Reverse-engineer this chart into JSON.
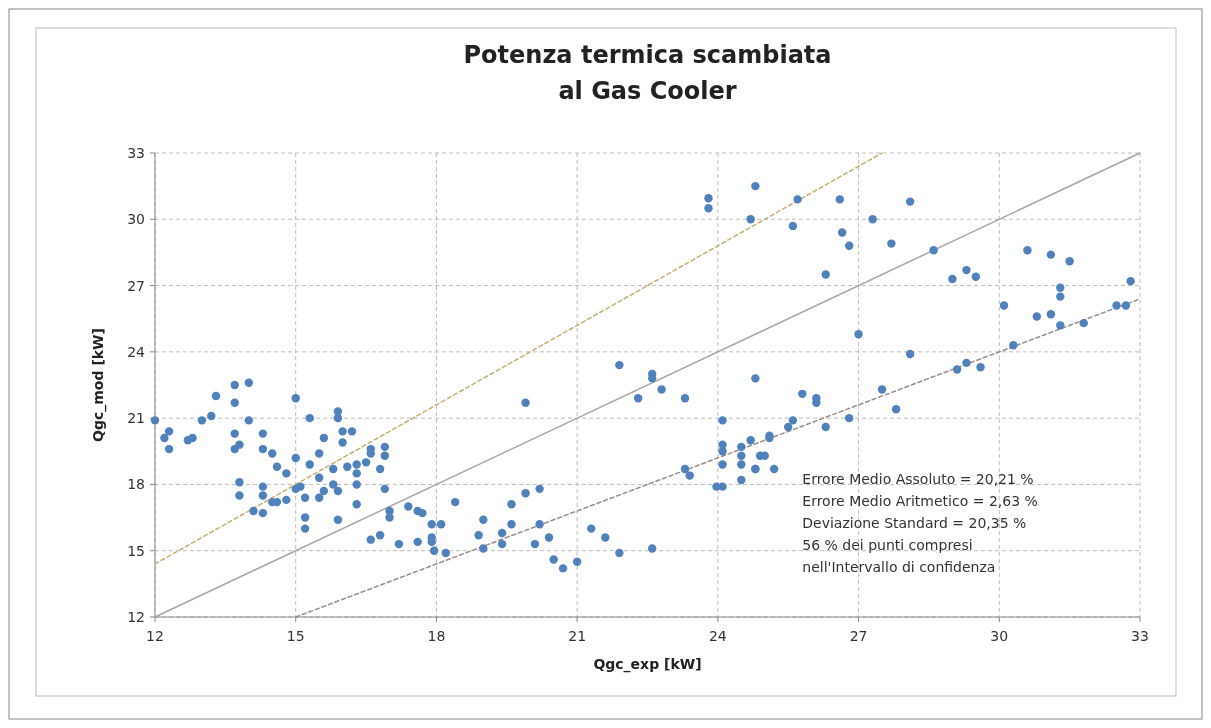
{
  "chart_data": {
    "type": "scatter",
    "title": "Potenza termica scambiata\nal Gas Cooler",
    "xlabel": "Qgc_exp [kW]",
    "ylabel": "Qgc_mod [kW]",
    "xlim": [
      12,
      33
    ],
    "xticks": [
      12,
      15,
      18,
      21,
      24,
      27,
      30,
      33
    ],
    "ylim": [
      12,
      33
    ],
    "yticks": [
      12,
      15,
      18,
      21,
      24,
      27,
      30,
      33
    ],
    "grid": true,
    "marker": "circle",
    "annotations": [
      "Errore Medio Assoluto = 20,21 %",
      "Errore Medio Aritmetico = 2,63 %",
      "Deviazione Standard = 20,35 %",
      "56 % dei punti compresi",
      "nell'Intervallo di confidenza"
    ],
    "series": [
      {
        "type": "line",
        "color": "#a6a6a6",
        "line_style": "solid",
        "marker": "none",
        "x": [
          12,
          33
        ],
        "values": [
          12,
          33
        ]
      },
      {
        "type": "line",
        "color": "#c4b070",
        "line_style": "dashed",
        "marker": "none",
        "x": [
          12,
          27.5
        ],
        "values": [
          14.4,
          33
        ]
      },
      {
        "type": "line",
        "color": "#9a8a8a",
        "line_style": "dashed",
        "marker": "none",
        "x": [
          15,
          33
        ],
        "values": [
          12,
          26.4
        ]
      },
      {
        "color": "#4f81bd",
        "x": [
          12.0,
          12.2,
          12.3,
          12.3,
          12.7,
          12.8,
          13.0,
          13.2,
          13.3,
          13.7,
          13.7,
          14.0,
          14.0,
          13.7,
          13.7,
          13.8,
          14.3,
          14.3,
          14.5,
          15.0,
          15.3,
          15.9,
          15.9,
          15.6,
          16.0,
          16.2,
          16.0,
          16.6,
          16.6,
          16.9,
          16.9,
          14.6,
          14.8,
          15.0,
          15.5,
          15.3,
          15.5,
          15.8,
          16.1,
          16.3,
          16.5,
          16.3,
          16.8,
          13.8,
          13.8,
          14.3,
          14.3,
          14.5,
          14.6,
          14.8,
          15.0,
          15.1,
          15.2,
          15.5,
          15.6,
          15.8,
          15.9,
          16.3,
          16.3,
          16.9,
          14.1,
          14.3,
          15.2,
          15.2,
          15.9,
          16.6,
          16.8,
          17.0,
          17.0,
          17.4,
          17.6,
          17.7,
          17.2,
          17.6,
          17.9,
          19.9,
          22.3,
          22.6,
          22.6,
          22.8,
          23.3,
          24.8,
          24.1,
          24.1,
          24.1,
          24.1,
          24.5,
          24.5,
          24.5,
          24.7,
          24.9,
          24.8,
          23.97,
          24.1,
          24.5,
          23.3,
          23.4,
          17.9,
          18.1,
          17.9,
          17.95,
          18.2,
          18.4,
          18.9,
          19.0,
          19.0,
          19.4,
          19.4,
          19.6,
          19.6,
          19.9,
          20.2,
          20.2,
          20.1,
          20.4,
          20.5,
          20.7,
          21.0,
          21.3,
          21.6,
          21.9,
          22.6,
          21.9,
          24.8,
          24.7,
          25.7,
          25.6,
          26.6,
          26.65,
          26.8,
          27.3,
          28.1,
          27.7,
          26.3,
          28.6,
          29.0,
          29.3,
          29.5,
          30.6,
          31.1,
          31.5,
          31.3,
          31.3,
          32.8,
          30.1,
          30.8,
          31.1,
          31.3,
          31.8,
          32.5,
          32.7,
          30.3,
          27.0,
          28.1,
          29.1,
          29.3,
          29.6,
          25.8,
          26.1,
          27.5,
          26.1,
          27.8,
          25.6,
          25.5,
          26.3,
          26.8,
          25.1,
          25.1,
          25.0,
          24.8,
          25.2,
          23.8,
          23.8
        ],
        "values": [
          20.9,
          20.1,
          20.4,
          19.6,
          20.0,
          20.1,
          20.9,
          21.1,
          22.0,
          22.5,
          21.7,
          22.6,
          20.9,
          20.3,
          19.6,
          19.8,
          20.3,
          19.6,
          19.4,
          21.9,
          21.0,
          21.3,
          21.0,
          20.1,
          20.4,
          20.4,
          19.9,
          19.6,
          19.4,
          19.7,
          19.3,
          18.8,
          18.5,
          19.2,
          19.4,
          18.9,
          18.3,
          18.7,
          18.8,
          18.9,
          19.0,
          18.5,
          18.7,
          18.1,
          17.5,
          17.9,
          17.5,
          17.2,
          17.2,
          17.3,
          17.8,
          17.9,
          17.4,
          17.4,
          17.7,
          18.0,
          17.7,
          18.0,
          17.1,
          17.8,
          16.8,
          16.7,
          16.5,
          16.0,
          16.4,
          15.5,
          15.7,
          16.5,
          16.8,
          17.0,
          16.8,
          16.7,
          15.3,
          15.4,
          15.4,
          21.7,
          21.9,
          23.0,
          22.8,
          22.3,
          21.9,
          22.8,
          20.9,
          19.8,
          19.5,
          18.9,
          19.7,
          19.3,
          18.9,
          20.0,
          19.3,
          18.7,
          17.9,
          17.9,
          18.2,
          18.7,
          18.4,
          16.2,
          16.2,
          15.6,
          15.0,
          14.9,
          17.2,
          15.7,
          16.4,
          15.1,
          15.8,
          15.3,
          17.1,
          16.2,
          17.6,
          17.8,
          16.2,
          15.3,
          15.6,
          14.6,
          14.2,
          14.5,
          16.0,
          15.6,
          14.9,
          15.1,
          23.4,
          31.5,
          30.0,
          30.9,
          29.7,
          30.9,
          29.4,
          28.8,
          30.0,
          30.8,
          28.9,
          27.5,
          28.6,
          27.3,
          27.7,
          27.4,
          28.6,
          28.4,
          28.1,
          26.9,
          26.5,
          27.2,
          26.1,
          25.6,
          25.7,
          25.2,
          25.3,
          26.1,
          26.1,
          24.3,
          24.8,
          23.9,
          23.2,
          23.5,
          23.3,
          22.1,
          21.9,
          22.3,
          21.7,
          21.4,
          20.9,
          20.6,
          20.6,
          21.0,
          20.2,
          20.1,
          19.3,
          18.7,
          18.7,
          30.95,
          30.5
        ]
      }
    ]
  }
}
